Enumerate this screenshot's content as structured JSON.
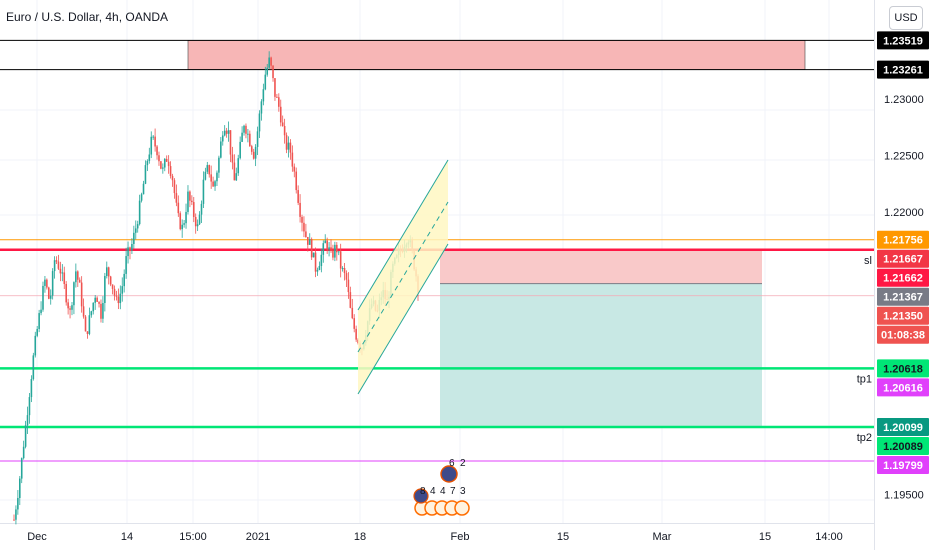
{
  "title": "Euro / U.S. Dollar, 4h, OANDA",
  "currency_button": "USD",
  "chart_data": {
    "type": "candlestick",
    "symbol": "Euro / U.S. Dollar",
    "timeframe": "4h",
    "source": "OANDA",
    "x_ticks": [
      "Dec",
      "14",
      "15:00",
      "2021",
      "18",
      "Feb",
      "15",
      "Mar",
      "15",
      "14:00"
    ],
    "y_ticks": [
      "1.23000",
      "1.22500",
      "1.22000",
      "1.19500"
    ],
    "ylim": [
      1.1925,
      1.2385
    ],
    "price_path": [
      1.1928,
      1.196,
      1.2,
      1.204,
      1.208,
      1.211,
      1.214,
      1.212,
      1.216,
      1.215,
      1.213,
      1.211,
      1.215,
      1.213,
      1.209,
      1.211,
      1.213,
      1.211,
      1.215,
      1.214,
      1.212,
      1.213,
      1.216,
      1.217,
      1.219,
      1.2215,
      1.2245,
      1.2265,
      1.2255,
      1.2235,
      1.225,
      1.223,
      1.2195,
      1.2185,
      1.2215,
      1.22,
      1.2185,
      1.2225,
      1.224,
      1.222,
      1.2245,
      1.228,
      1.227,
      1.2225,
      1.225,
      1.228,
      1.2265,
      1.225,
      1.2285,
      1.232,
      1.2335,
      1.2305,
      1.229,
      1.226,
      1.2255,
      1.223,
      1.22,
      1.218,
      1.217,
      1.215,
      1.216,
      1.2175,
      1.216,
      1.217,
      1.215,
      1.214,
      1.2105,
      1.209,
      1.208,
      1.21,
      1.212,
      1.211,
      1.213,
      1.212,
      1.215,
      1.216,
      1.217,
      1.218,
      1.216,
      1.2135
    ],
    "price_labels": [
      {
        "text": "1.23519",
        "value": 1.23519,
        "color": "#000000"
      },
      {
        "text": "1.23261",
        "value": 1.23261,
        "color": "#000000"
      },
      {
        "text": "1.21756",
        "value": 1.21756,
        "color": "#ff9800"
      },
      {
        "text": "1.21667",
        "value": 1.21667,
        "color": "#f23645"
      },
      {
        "text": "1.21662",
        "value": 1.21662,
        "color": "#ff1744"
      },
      {
        "text": "1.21367",
        "value": 1.21367,
        "color": "#787b86"
      },
      {
        "text": "1.21350",
        "value": 1.2135,
        "color": "#ef5350"
      },
      {
        "text": "01:08:38",
        "value": 1.2121,
        "color": "#ef5350"
      },
      {
        "text": "1.20618",
        "value": 1.20618,
        "color": "#00e676"
      },
      {
        "text": "1.20616",
        "value": 1.20616,
        "color": "#e040fb"
      },
      {
        "text": "1.20099",
        "value": 1.20099,
        "color": "#089981"
      },
      {
        "text": "1.20089",
        "value": 1.20089,
        "color": "#00e676"
      },
      {
        "text": "1.19799",
        "value": 1.19799,
        "color": "#e040fb"
      }
    ],
    "horizontal_lines": [
      {
        "value": 1.23519,
        "color": "#000000"
      },
      {
        "value": 1.23261,
        "color": "#000000"
      },
      {
        "value": 1.21756,
        "color": "#ff9800"
      },
      {
        "value": 1.21667,
        "color": "#ff1744"
      },
      {
        "value": 1.20618,
        "color": "#00e676"
      },
      {
        "value": 1.20099,
        "color": "#00e676"
      },
      {
        "value": 1.19799,
        "color": "#e040fb"
      }
    ],
    "resistance_zone": {
      "top": 1.23519,
      "bottom": 1.23261,
      "color": "#f7b6b6"
    },
    "short_position": {
      "entry": 1.21367,
      "stop": 1.21667,
      "target": 1.20099,
      "stop_color": "#f9c9c9",
      "target_color": "#c8e8e4"
    },
    "line_labels": [
      {
        "text": "sl",
        "value": 1.21667
      },
      {
        "text": "tp1",
        "value": 1.20618
      },
      {
        "text": "tp2",
        "value": 1.20099
      }
    ],
    "event_counts": [
      "6",
      "2",
      "8",
      "4",
      "4",
      "7",
      "3"
    ],
    "colors": {
      "up": "#26a69a",
      "down": "#ef5350",
      "channel": "#26a69a",
      "channel_fill": "#fff7c2"
    }
  }
}
